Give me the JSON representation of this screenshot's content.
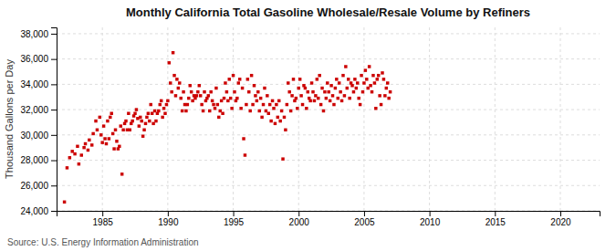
{
  "chart_data": {
    "type": "scatter",
    "title": "Monthly California Total Gasoline Wholesale/Resale Volume by Refiners",
    "y_label": "Thousand Gallons per Day",
    "source": "Source: U.S. Energy Information Administration",
    "color": "#cc0000",
    "marker": "square",
    "grid": true,
    "xlim": [
      1981.5,
      2023
    ],
    "ylim": [
      24000,
      38500
    ],
    "xticks": [
      1985,
      1990,
      1995,
      2000,
      2005,
      2010,
      2015,
      2020
    ],
    "yticks": [
      {
        "value": 24000,
        "label": "24,000"
      },
      {
        "value": 26000,
        "label": "26,000"
      },
      {
        "value": 28000,
        "label": "28,000"
      },
      {
        "value": 30000,
        "label": "30,000"
      },
      {
        "value": 32000,
        "label": "32,000"
      },
      {
        "value": 34000,
        "label": "34,000"
      },
      {
        "value": 36000,
        "label": "36,000"
      },
      {
        "value": 38000,
        "label": "38,000"
      }
    ],
    "x": [
      1982.1,
      1982.3,
      1982.5,
      1982.7,
      1982.9,
      1983.1,
      1983.2,
      1983.4,
      1983.6,
      1983.7,
      1983.9,
      1984.0,
      1984.2,
      1984.3,
      1984.5,
      1984.6,
      1984.8,
      1984.9,
      1985.0,
      1985.1,
      1985.2,
      1985.3,
      1985.4,
      1985.5,
      1985.6,
      1985.7,
      1985.8,
      1985.9,
      1986.0,
      1986.1,
      1986.2,
      1986.3,
      1986.4,
      1986.5,
      1986.6,
      1986.7,
      1986.8,
      1986.9,
      1987.0,
      1987.1,
      1987.2,
      1987.3,
      1987.4,
      1987.5,
      1987.6,
      1987.7,
      1987.8,
      1987.9,
      1988.0,
      1988.1,
      1988.2,
      1988.3,
      1988.4,
      1988.5,
      1988.6,
      1988.7,
      1988.8,
      1988.9,
      1989.0,
      1989.1,
      1989.2,
      1989.3,
      1989.4,
      1989.5,
      1989.6,
      1989.7,
      1989.8,
      1989.9,
      1990.0,
      1990.1,
      1990.2,
      1990.3,
      1990.4,
      1990.5,
      1990.6,
      1990.7,
      1990.8,
      1990.9,
      1991.0,
      1991.1,
      1991.2,
      1991.3,
      1991.4,
      1991.5,
      1991.6,
      1991.7,
      1991.8,
      1991.9,
      1992.0,
      1992.1,
      1992.2,
      1992.3,
      1992.4,
      1992.5,
      1992.6,
      1992.7,
      1992.8,
      1992.9,
      1993.0,
      1993.1,
      1993.2,
      1993.3,
      1993.4,
      1993.5,
      1993.6,
      1993.7,
      1993.8,
      1993.9,
      1994.0,
      1994.1,
      1994.2,
      1994.3,
      1994.4,
      1994.5,
      1994.6,
      1994.7,
      1994.8,
      1994.9,
      1995.0,
      1995.1,
      1995.2,
      1995.3,
      1995.4,
      1995.5,
      1995.6,
      1995.7,
      1995.8,
      1995.9,
      1996.0,
      1996.1,
      1996.2,
      1996.3,
      1996.4,
      1996.5,
      1996.6,
      1996.7,
      1996.8,
      1996.9,
      1997.0,
      1997.1,
      1997.2,
      1997.3,
      1997.4,
      1997.5,
      1997.6,
      1997.7,
      1997.8,
      1997.9,
      1998.0,
      1998.1,
      1998.2,
      1998.3,
      1998.4,
      1998.5,
      1998.6,
      1998.7,
      1998.8,
      1998.9,
      1999.0,
      1999.1,
      1999.2,
      1999.3,
      1999.4,
      1999.5,
      1999.6,
      1999.7,
      1999.8,
      1999.9,
      2000.0,
      2000.1,
      2000.2,
      2000.3,
      2000.4,
      2000.5,
      2000.6,
      2000.7,
      2000.8,
      2000.9,
      2001.0,
      2001.1,
      2001.2,
      2001.3,
      2001.4,
      2001.5,
      2001.6,
      2001.7,
      2001.8,
      2001.9,
      2002.0,
      2002.1,
      2002.2,
      2002.3,
      2002.4,
      2002.5,
      2002.6,
      2002.7,
      2002.8,
      2002.9,
      2003.0,
      2003.1,
      2003.2,
      2003.3,
      2003.4,
      2003.5,
      2003.6,
      2003.7,
      2003.8,
      2003.9,
      2004.0,
      2004.1,
      2004.2,
      2004.3,
      2004.4,
      2004.5,
      2004.6,
      2004.7,
      2004.8,
      2004.9,
      2005.0,
      2005.1,
      2005.2,
      2005.3,
      2005.4,
      2005.5,
      2005.6,
      2005.7,
      2005.8,
      2005.9,
      2006.0,
      2006.1,
      2006.2,
      2006.3,
      2006.4,
      2006.5,
      2006.6,
      2006.7,
      2006.8,
      2006.9,
      2007.0
    ],
    "values": [
      24700,
      27400,
      28200,
      28700,
      28500,
      29100,
      27700,
      28400,
      29000,
      29300,
      28800,
      29600,
      29200,
      30100,
      31100,
      30400,
      31400,
      30000,
      29400,
      30700,
      29700,
      29300,
      31100,
      29700,
      31400,
      31700,
      30100,
      28900,
      30400,
      29500,
      28900,
      29100,
      30700,
      26900,
      30400,
      30900,
      31100,
      30400,
      31700,
      30400,
      30900,
      31100,
      31500,
      31700,
      32000,
      31300,
      30700,
      31400,
      31100,
      29900,
      30400,
      30900,
      31400,
      31700,
      31100,
      32400,
      31700,
      30900,
      31900,
      31100,
      31700,
      31900,
      32400,
      32700,
      31400,
      32100,
      31700,
      32400,
      32700,
      35700,
      34100,
      33400,
      36500,
      34700,
      33100,
      34400,
      33700,
      34100,
      32900,
      31900,
      33400,
      32400,
      31900,
      32400,
      32900,
      33900,
      33400,
      32700,
      33100,
      32900,
      33100,
      33400,
      33900,
      33100,
      32400,
      31900,
      33400,
      32700,
      32900,
      33100,
      31900,
      33400,
      32700,
      32400,
      32100,
      33700,
      32400,
      31400,
      31900,
      32700,
      31700,
      32900,
      34100,
      33400,
      32700,
      34400,
      32900,
      32100,
      34700,
      33400,
      32700,
      32900,
      34100,
      34400,
      32100,
      33700,
      29700,
      28400,
      32400,
      34400,
      33400,
      31900,
      34700,
      32400,
      33900,
      33100,
      32700,
      33400,
      31900,
      32900,
      31400,
      32400,
      33700,
      31900,
      33100,
      31700,
      32400,
      31100,
      32700,
      32100,
      30900,
      32400,
      31400,
      32700,
      31100,
      31900,
      28100,
      31400,
      30400,
      32400,
      34100,
      33400,
      31900,
      33100,
      34400,
      32700,
      32900,
      32100,
      33700,
      34400,
      33100,
      32400,
      33900,
      33700,
      32100,
      33400,
      32900,
      32700,
      34100,
      33400,
      32700,
      33100,
      34400,
      32900,
      34700,
      32400,
      33700,
      31900,
      33400,
      32900,
      34100,
      33400,
      32700,
      33900,
      33100,
      32400,
      33700,
      34400,
      32900,
      34100,
      33400,
      32700,
      34700,
      33100,
      35400,
      33700,
      34400,
      32900,
      34100,
      33900,
      33400,
      34400,
      33700,
      34100,
      32900,
      32400,
      34700,
      33400,
      34100,
      35100,
      34400,
      33700,
      35400,
      33900,
      33400,
      34700,
      34100,
      32100,
      34400,
      34700,
      33100,
      32400,
      34900,
      34400,
      33100,
      33700,
      34100,
      32900,
      33400
    ]
  }
}
